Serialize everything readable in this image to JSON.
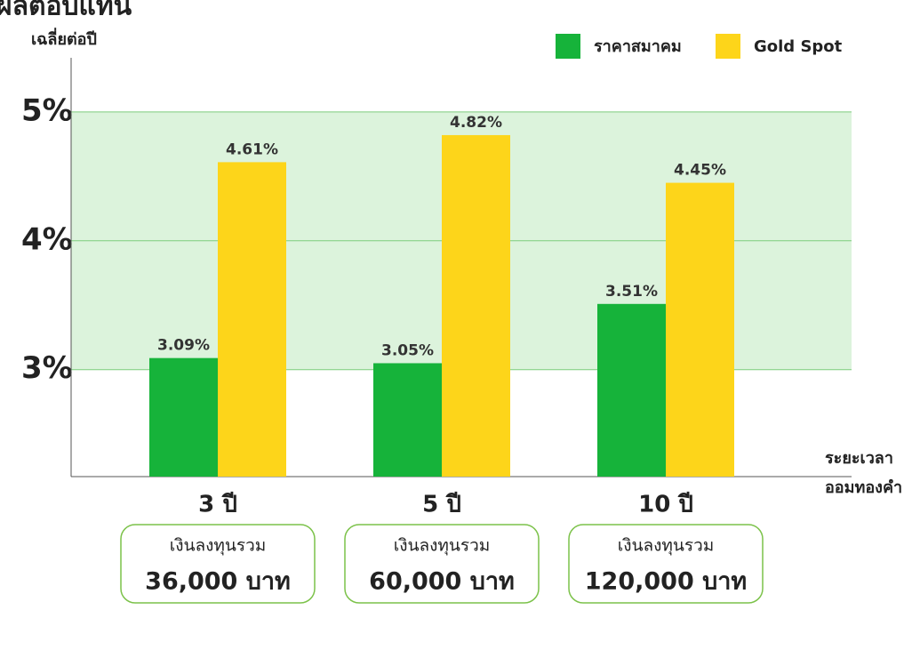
{
  "chart_data": {
    "type": "bar",
    "title": "ผลตอบแทน",
    "subtitle": "เฉลี่ยต่อปี",
    "xlabel": [
      "ระยะเวลา",
      "ออมทองคำ"
    ],
    "categories": [
      "3 ปี",
      "5 ปี",
      "10 ปี"
    ],
    "category_notes": [
      {
        "label": "เงินลงทุนรวม",
        "amount": "36,000 บาท"
      },
      {
        "label": "เงินลงทุนรวม",
        "amount": "60,000 บาท"
      },
      {
        "label": "เงินลงทุนรวม",
        "amount": "120,000 บาท"
      }
    ],
    "series": [
      {
        "name": "ราคาสมาคม",
        "color": "#16b33a",
        "values": [
          3.09,
          3.05,
          3.51
        ],
        "value_labels": [
          "3.09%",
          "3.05%",
          "3.51%"
        ]
      },
      {
        "name": "Gold Spot",
        "color": "#fdd51a",
        "values": [
          4.61,
          4.82,
          4.45
        ],
        "value_labels": [
          "4.61%",
          "4.82%",
          "4.45%"
        ]
      }
    ],
    "ylim": [
      2.17,
      5.42
    ],
    "yticks": [
      {
        "value": 3,
        "label": "3%"
      },
      {
        "value": 4,
        "label": "4%"
      },
      {
        "value": 5,
        "label": "5%"
      }
    ],
    "grid": true,
    "legend": "top-right"
  }
}
